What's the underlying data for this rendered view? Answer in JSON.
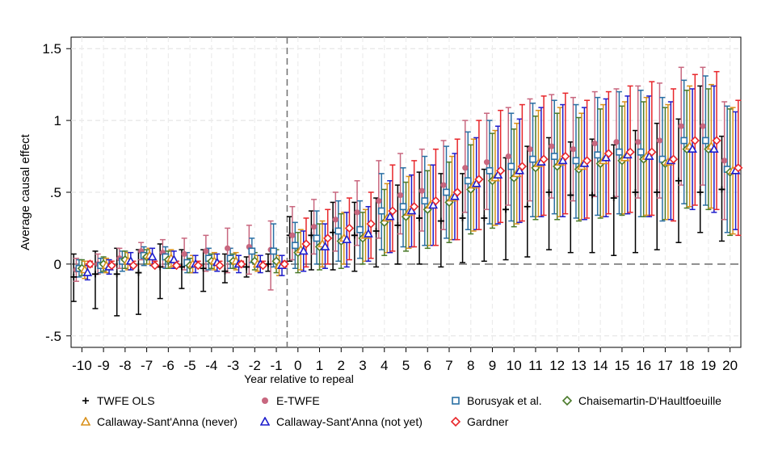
{
  "chart_data": {
    "type": "errorbar",
    "title": "",
    "xlabel": "Year relative to repeal",
    "ylabel": "Average causal effect",
    "xlim": [
      -10.5,
      20.5
    ],
    "ylim": [
      -0.58,
      1.58
    ],
    "yticks": [
      -0.5,
      0,
      0.5,
      1,
      1.5
    ],
    "ytick_labels": [
      "-.5",
      "0",
      ".5",
      "1",
      "1.5"
    ],
    "x": [
      -10,
      -9,
      -8,
      -7,
      -6,
      -5,
      -4,
      -3,
      -2,
      -1,
      0,
      1,
      2,
      3,
      4,
      5,
      6,
      7,
      8,
      9,
      10,
      11,
      12,
      13,
      14,
      15,
      16,
      17,
      18,
      19,
      20
    ],
    "reference_lines": {
      "vertical_x": -0.5,
      "horizontal_y": 0
    },
    "grid": true,
    "series": [
      {
        "name": "TWFE OLS",
        "marker": "plus",
        "color": "#000000",
        "offset": -0.38,
        "values": [
          -0.09,
          -0.07,
          -0.07,
          -0.06,
          -0.02,
          -0.02,
          -0.03,
          -0.05,
          -0.02,
          0.0,
          0.2,
          0.2,
          0.22,
          0.2,
          0.23,
          0.27,
          0.32,
          0.3,
          0.32,
          0.32,
          0.38,
          0.4,
          0.5,
          0.48,
          0.48,
          0.46,
          0.5,
          0.5,
          0.58,
          0.5,
          0.52
        ],
        "low": [
          -0.26,
          -0.31,
          -0.36,
          -0.35,
          -0.24,
          -0.17,
          -0.19,
          -0.13,
          -0.09,
          -0.05,
          0.02,
          -0.04,
          -0.04,
          -0.05,
          -0.02,
          0.0,
          0.0,
          -0.02,
          0.01,
          0.02,
          0.03,
          0.05,
          0.1,
          0.08,
          0.08,
          0.06,
          0.08,
          0.1,
          0.15,
          0.22,
          0.16
        ],
        "high": [
          0.07,
          0.09,
          0.11,
          0.1,
          0.14,
          0.1,
          0.1,
          0.07,
          0.05,
          0.07,
          0.33,
          0.37,
          0.43,
          0.43,
          0.46,
          0.55,
          0.64,
          0.63,
          0.63,
          0.66,
          0.74,
          0.82,
          0.88,
          0.85,
          0.87,
          0.83,
          0.93,
          0.98,
          1.01,
          1.24,
          0.89
        ]
      },
      {
        "name": "E-TWFE",
        "marker": "circle",
        "color": "#c8677f",
        "offset": -0.26,
        "values": [
          -0.04,
          0.0,
          0.04,
          0.09,
          0.08,
          0.07,
          0.09,
          0.11,
          0.12,
          0.1,
          0.2,
          0.26,
          0.31,
          0.36,
          0.44,
          0.48,
          0.51,
          0.55,
          0.67,
          0.71,
          0.75,
          0.8,
          0.82,
          0.8,
          0.84,
          0.85,
          0.85,
          0.86,
          0.96,
          0.96,
          0.72
        ],
        "low": [
          -0.12,
          -0.07,
          -0.03,
          0.03,
          -0.02,
          -0.04,
          -0.05,
          -0.06,
          -0.07,
          -0.18,
          0.03,
          0.07,
          0.09,
          0.13,
          0.18,
          0.21,
          0.23,
          0.24,
          0.36,
          0.38,
          0.41,
          0.44,
          0.46,
          0.44,
          0.47,
          0.47,
          0.46,
          0.46,
          0.55,
          0.55,
          0.31
        ],
        "high": [
          0.04,
          0.07,
          0.11,
          0.15,
          0.17,
          0.18,
          0.2,
          0.25,
          0.27,
          0.3,
          0.4,
          0.45,
          0.5,
          0.58,
          0.72,
          0.77,
          0.8,
          0.86,
          1.0,
          1.05,
          1.09,
          1.15,
          1.18,
          1.16,
          1.2,
          1.22,
          1.24,
          1.26,
          1.37,
          1.37,
          1.13
        ]
      },
      {
        "name": "Borusyak et al.",
        "marker": "square",
        "color": "#2a6fa3",
        "offset": -0.13,
        "values": [
          -0.03,
          -0.01,
          0.02,
          0.06,
          0.05,
          0.01,
          0.04,
          0.04,
          0.09,
          0.09,
          0.13,
          0.18,
          0.23,
          0.24,
          0.37,
          0.4,
          0.44,
          0.5,
          0.58,
          0.65,
          0.68,
          0.73,
          0.75,
          0.72,
          0.76,
          0.78,
          0.78,
          0.73,
          0.86,
          0.86,
          0.66
        ],
        "low": [
          -0.09,
          -0.06,
          -0.05,
          -0.01,
          -0.03,
          -0.06,
          -0.04,
          -0.03,
          0.01,
          -0.02,
          -0.03,
          0.0,
          0.02,
          0.04,
          0.1,
          0.12,
          0.13,
          0.18,
          0.24,
          0.28,
          0.3,
          0.33,
          0.35,
          0.32,
          0.34,
          0.35,
          0.33,
          0.3,
          0.42,
          0.41,
          0.22
        ],
        "high": [
          0.03,
          0.04,
          0.09,
          0.12,
          0.12,
          0.08,
          0.11,
          0.11,
          0.18,
          0.28,
          0.29,
          0.37,
          0.44,
          0.44,
          0.63,
          0.67,
          0.75,
          0.82,
          0.92,
          1.0,
          1.05,
          1.12,
          1.14,
          1.11,
          1.16,
          1.2,
          1.21,
          1.16,
          1.28,
          1.31,
          1.1
        ]
      },
      {
        "name": "Chaisemartin-D'Haultfoeuille",
        "marker": "diamond",
        "color": "#4a7a2a",
        "offset": 0.0,
        "values": [
          -0.03,
          0.0,
          0.03,
          0.05,
          0.03,
          -0.01,
          0.02,
          0.02,
          0.02,
          0.02,
          0.08,
          0.12,
          0.16,
          0.18,
          0.29,
          0.33,
          0.38,
          0.43,
          0.52,
          0.58,
          0.6,
          0.67,
          0.68,
          0.66,
          0.7,
          0.72,
          0.73,
          0.7,
          0.8,
          0.8,
          0.64
        ],
        "low": [
          -0.08,
          -0.05,
          -0.03,
          0.0,
          -0.03,
          -0.06,
          -0.03,
          -0.03,
          -0.04,
          -0.06,
          -0.06,
          -0.04,
          -0.03,
          0.0,
          0.06,
          0.09,
          0.11,
          0.15,
          0.21,
          0.25,
          0.26,
          0.31,
          0.31,
          0.3,
          0.32,
          0.34,
          0.33,
          0.31,
          0.39,
          0.38,
          0.2
        ],
        "high": [
          0.03,
          0.05,
          0.09,
          0.1,
          0.09,
          0.04,
          0.07,
          0.07,
          0.08,
          0.1,
          0.22,
          0.28,
          0.35,
          0.36,
          0.52,
          0.57,
          0.65,
          0.71,
          0.83,
          0.91,
          0.94,
          1.03,
          1.05,
          1.02,
          1.08,
          1.1,
          1.13,
          1.09,
          1.21,
          1.22,
          1.08
        ]
      },
      {
        "name": "Callaway-Sant'Anna (never)",
        "marker": "triangle",
        "color": "#d9901a",
        "offset": 0.13,
        "values": [
          -0.04,
          -0.01,
          0.02,
          0.06,
          0.04,
          0.0,
          0.02,
          0.02,
          0.0,
          -0.01,
          0.1,
          0.14,
          0.18,
          0.2,
          0.32,
          0.36,
          0.41,
          0.46,
          0.55,
          0.6,
          0.63,
          0.7,
          0.71,
          0.68,
          0.72,
          0.74,
          0.75,
          0.71,
          0.82,
          0.82,
          0.65
        ],
        "low": [
          -0.1,
          -0.06,
          -0.04,
          0.0,
          -0.02,
          -0.06,
          -0.04,
          -0.04,
          -0.05,
          -0.08,
          -0.04,
          -0.02,
          0.0,
          0.02,
          0.08,
          0.11,
          0.13,
          0.17,
          0.23,
          0.27,
          0.28,
          0.33,
          0.33,
          0.31,
          0.33,
          0.35,
          0.34,
          0.31,
          0.4,
          0.39,
          0.21
        ],
        "high": [
          0.02,
          0.04,
          0.08,
          0.11,
          0.1,
          0.06,
          0.08,
          0.08,
          0.06,
          0.06,
          0.24,
          0.3,
          0.36,
          0.38,
          0.56,
          0.61,
          0.69,
          0.75,
          0.87,
          0.93,
          0.98,
          1.07,
          1.09,
          1.05,
          1.11,
          1.13,
          1.16,
          1.11,
          1.24,
          1.25,
          1.09
        ]
      },
      {
        "name": "Callaway-Sant'Anna (not yet)",
        "marker": "triangle",
        "color": "#1c1ccc",
        "offset": 0.26,
        "values": [
          -0.06,
          -0.02,
          0.02,
          0.05,
          0.03,
          0.0,
          0.01,
          0.0,
          0.0,
          -0.01,
          0.09,
          0.12,
          0.17,
          0.21,
          0.33,
          0.37,
          0.41,
          0.47,
          0.56,
          0.62,
          0.65,
          0.71,
          0.72,
          0.7,
          0.74,
          0.76,
          0.75,
          0.72,
          0.8,
          0.8,
          0.65
        ],
        "low": [
          -0.11,
          -0.07,
          -0.04,
          -0.01,
          -0.03,
          -0.06,
          -0.05,
          -0.06,
          -0.06,
          -0.08,
          -0.05,
          -0.03,
          -0.02,
          0.02,
          0.08,
          0.12,
          0.13,
          0.17,
          0.24,
          0.28,
          0.29,
          0.33,
          0.33,
          0.31,
          0.33,
          0.35,
          0.33,
          0.31,
          0.38,
          0.36,
          0.24
        ],
        "high": [
          -0.01,
          0.03,
          0.08,
          0.11,
          0.09,
          0.06,
          0.07,
          0.06,
          0.06,
          0.06,
          0.23,
          0.28,
          0.36,
          0.4,
          0.58,
          0.62,
          0.69,
          0.77,
          0.88,
          0.96,
          1.01,
          1.09,
          1.11,
          1.09,
          1.15,
          1.17,
          1.17,
          1.13,
          1.22,
          1.24,
          1.06
        ]
      },
      {
        "name": "Gardner",
        "marker": "diamond",
        "color": "#e8262a",
        "offset": 0.38,
        "values": [
          0.0,
          -0.01,
          -0.01,
          -0.01,
          -0.01,
          -0.01,
          -0.01,
          0.0,
          -0.01,
          0.0,
          0.14,
          0.18,
          0.25,
          0.28,
          0.37,
          0.4,
          0.44,
          0.5,
          0.59,
          0.65,
          0.68,
          0.73,
          0.75,
          0.72,
          0.77,
          0.78,
          0.78,
          0.73,
          0.86,
          0.86,
          0.67
        ],
        "low": [
          -0.02,
          -0.02,
          -0.02,
          -0.02,
          -0.02,
          -0.02,
          -0.02,
          -0.02,
          -0.02,
          -0.02,
          -0.02,
          0.0,
          0.03,
          0.04,
          0.09,
          0.12,
          0.13,
          0.17,
          0.24,
          0.29,
          0.3,
          0.34,
          0.35,
          0.32,
          0.35,
          0.36,
          0.34,
          0.3,
          0.41,
          0.38,
          0.2
        ],
        "high": [
          0.02,
          0.02,
          0.02,
          0.02,
          0.02,
          0.02,
          0.02,
          0.02,
          0.02,
          0.02,
          0.32,
          0.38,
          0.46,
          0.5,
          0.69,
          0.72,
          0.8,
          0.87,
          1.0,
          1.07,
          1.11,
          1.17,
          1.19,
          1.14,
          1.2,
          1.24,
          1.27,
          1.22,
          1.32,
          1.34,
          1.14
        ]
      }
    ],
    "legend": {
      "position": "bottom",
      "columns": 4,
      "entries": [
        "TWFE OLS",
        "E-TWFE",
        "Borusyak et al.",
        "Chaisemartin-D'Haultfoeuille",
        "Callaway-Sant'Anna (never)",
        "Callaway-Sant'Anna (not yet)",
        "Gardner"
      ]
    }
  }
}
